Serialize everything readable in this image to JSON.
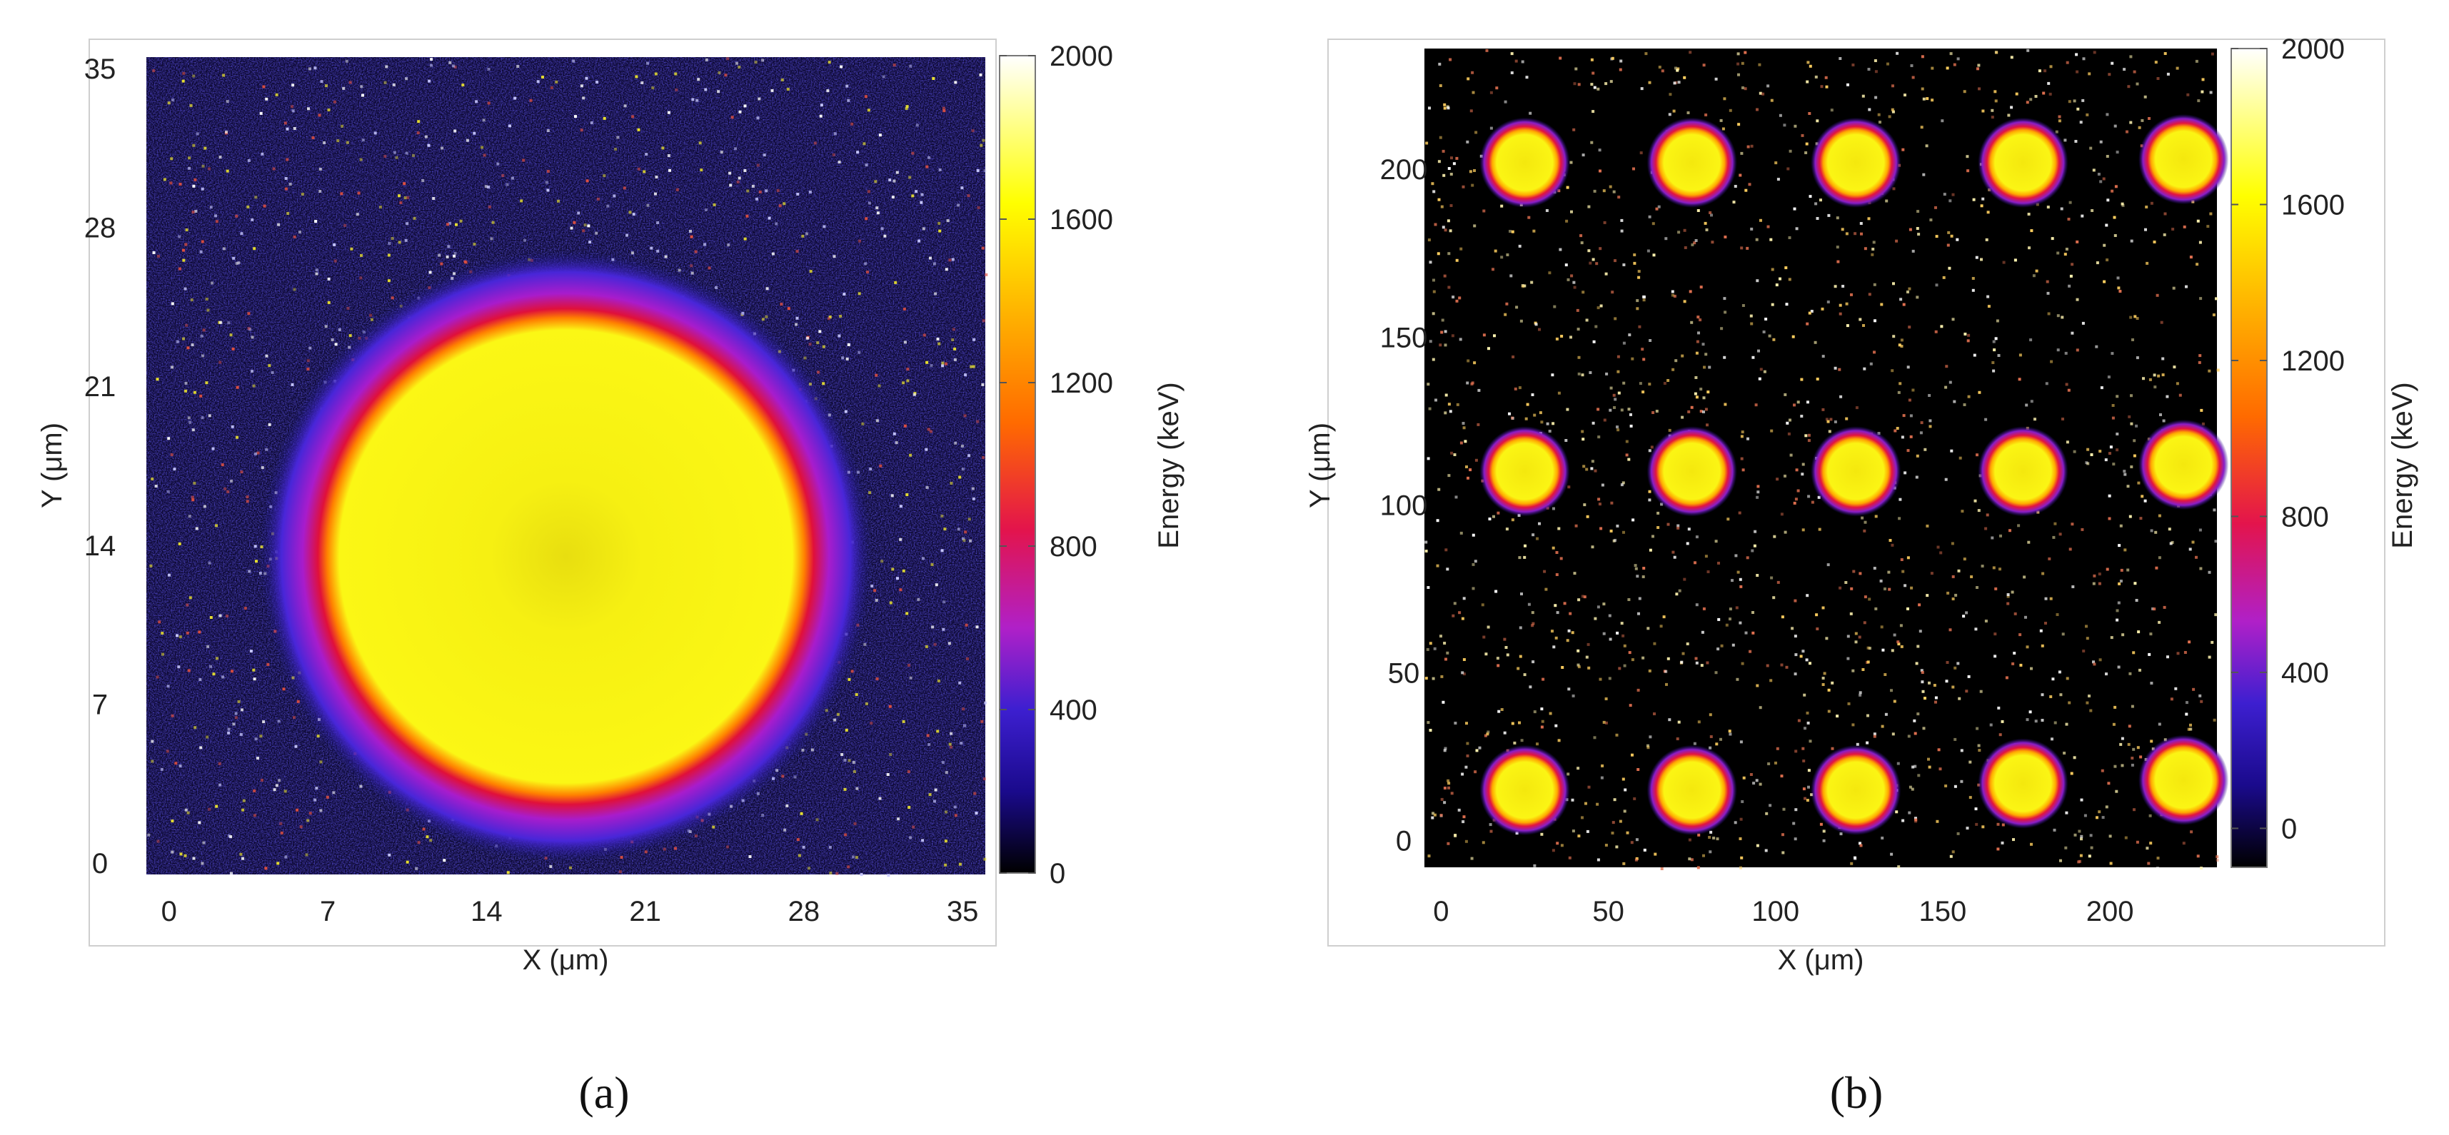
{
  "chart_data": [
    {
      "type": "heatmap",
      "panel_label": "(a)",
      "xlabel": "X (μm)",
      "ylabel": "Y (μm)",
      "xlim": [
        -1,
        36
      ],
      "ylim": [
        -0.5,
        35.5
      ],
      "xticks": [
        0,
        7,
        14,
        21,
        28,
        35
      ],
      "yticks": [
        0,
        7,
        14,
        21,
        28,
        35
      ],
      "spots": [
        {
          "x": 17.5,
          "y": 13.5,
          "radius_core": 10.5,
          "radius_halo": 13.5
        }
      ],
      "background": "dark-blue noise",
      "colorbar": {
        "label": "Energy (keV)",
        "range": [
          0,
          2000
        ],
        "ticks": [
          0,
          400,
          800,
          1200,
          1600,
          2000
        ],
        "colors": [
          "#000000",
          "#1a0a8c",
          "#3d1fd0",
          "#b020c8",
          "#e3144c",
          "#ff6a00",
          "#ffb000",
          "#ffff00",
          "#ffffff"
        ]
      }
    },
    {
      "type": "heatmap",
      "panel_label": "(b)",
      "xlabel": "X (μm)",
      "ylabel": "Y (μm)",
      "xlim": [
        -5,
        232
      ],
      "ylim": [
        -8,
        236
      ],
      "xticks": [
        0,
        50,
        100,
        150,
        200
      ],
      "yticks": [
        0,
        50,
        100,
        150,
        200
      ],
      "spots": [
        {
          "x": 25,
          "y": 202
        },
        {
          "x": 75,
          "y": 202
        },
        {
          "x": 124,
          "y": 202
        },
        {
          "x": 174,
          "y": 202
        },
        {
          "x": 222,
          "y": 203
        },
        {
          "x": 25,
          "y": 110
        },
        {
          "x": 75,
          "y": 110
        },
        {
          "x": 124,
          "y": 110
        },
        {
          "x": 174,
          "y": 110
        },
        {
          "x": 222,
          "y": 112
        },
        {
          "x": 25,
          "y": 15
        },
        {
          "x": 75,
          "y": 15
        },
        {
          "x": 124,
          "y": 15
        },
        {
          "x": 174,
          "y": 17
        },
        {
          "x": 222,
          "y": 18
        }
      ],
      "spot_radius": 10,
      "background": "black with sparse bright noise",
      "colorbar": {
        "label": "Energy (keV)",
        "range": [
          -100,
          2000
        ],
        "ticks": [
          0,
          400,
          800,
          1200,
          1600,
          2000
        ],
        "colors": [
          "#000000",
          "#1a0a8c",
          "#3d1fd0",
          "#b020c8",
          "#e3144c",
          "#ff6a00",
          "#ffb000",
          "#ffff00",
          "#ffffff"
        ]
      }
    }
  ]
}
